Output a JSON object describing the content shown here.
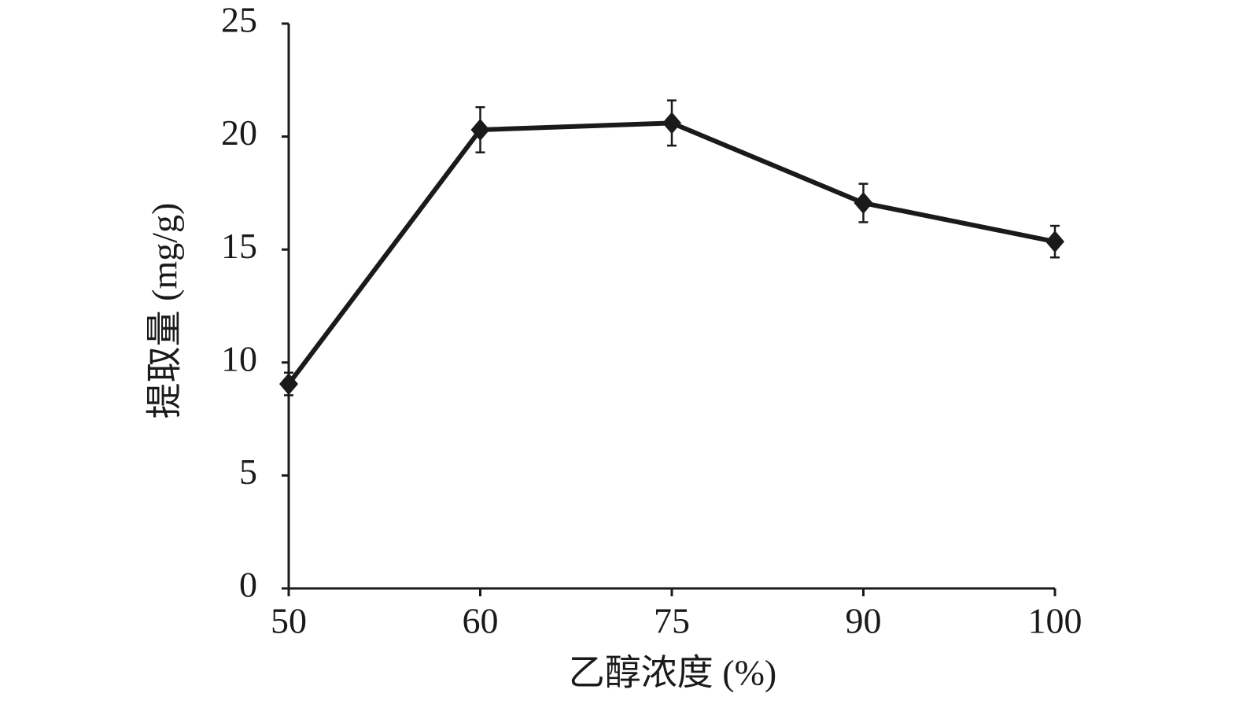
{
  "chart_data": {
    "type": "line",
    "xlabel": "乙醇浓度 (%)",
    "ylabel": "提取量 (mg/g)",
    "categories": [
      "50",
      "60",
      "75",
      "90",
      "100"
    ],
    "series": [
      {
        "color": "#1a1a1a",
        "values": [
          9.05,
          20.3,
          20.6,
          17.06,
          15.35
        ],
        "errors": [
          0.5,
          1.0,
          1.0,
          0.85,
          0.7
        ]
      }
    ],
    "ylim": [
      0,
      25
    ],
    "yticks": [
      0,
      5,
      10,
      15,
      20,
      25
    ],
    "grid": false
  }
}
